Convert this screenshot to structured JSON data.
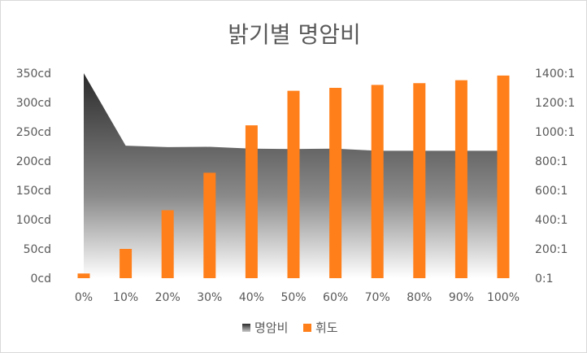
{
  "chart_data": {
    "type": "bar",
    "title": "밝기별 명암비",
    "categories": [
      "0%",
      "10%",
      "20%",
      "30%",
      "40%",
      "50%",
      "60%",
      "70%",
      "80%",
      "90%",
      "100%"
    ],
    "y_left": {
      "ticks": [
        "0cd",
        "50cd",
        "100cd",
        "150cd",
        "200cd",
        "250cd",
        "300cd",
        "350cd"
      ],
      "range": [
        0,
        350
      ]
    },
    "y_right": {
      "ticks": [
        "0:1",
        "200:1",
        "400:1",
        "600:1",
        "800:1",
        "1000:1",
        "1200:1",
        "1400:1"
      ],
      "range": [
        0,
        1400
      ]
    },
    "series": [
      {
        "name": "명암비",
        "type": "area",
        "axis": "right",
        "values": [
          1400,
          905,
          895,
          897,
          885,
          882,
          885,
          870,
          870,
          870,
          870
        ]
      },
      {
        "name": "휘도",
        "type": "bar",
        "axis": "left",
        "color": "#ff7f1a",
        "values": [
          8,
          50,
          116,
          180,
          261,
          320,
          325,
          330,
          333,
          338,
          346
        ]
      }
    ],
    "gridlines": false,
    "legend_position": "bottom"
  }
}
